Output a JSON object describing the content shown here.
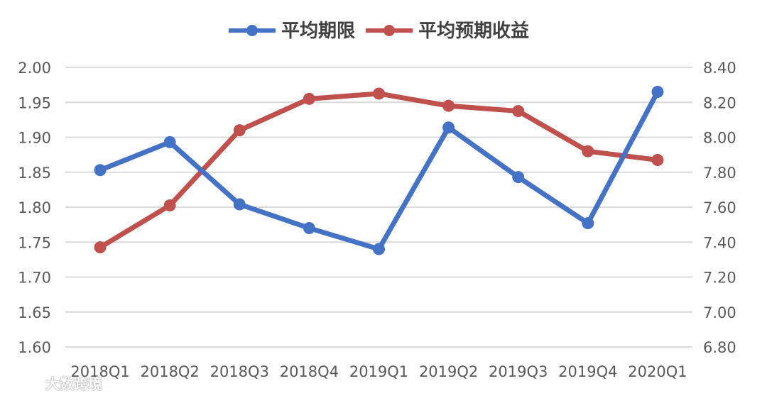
{
  "chart_data": {
    "type": "line",
    "categories": [
      "2018Q1",
      "2018Q2",
      "2018Q3",
      "2018Q4",
      "2019Q1",
      "2019Q2",
      "2019Q3",
      "2019Q4",
      "2020Q1"
    ],
    "series": [
      {
        "name": "平均期限",
        "axis": "left",
        "color": "#4472C4",
        "values": [
          1.853,
          1.893,
          1.804,
          1.77,
          1.74,
          1.914,
          1.843,
          1.777,
          1.965
        ]
      },
      {
        "name": "平均预期收益",
        "axis": "right",
        "color": "#C0504D",
        "values": [
          7.37,
          7.61,
          8.04,
          8.22,
          8.25,
          8.18,
          8.15,
          7.92,
          7.87
        ]
      }
    ],
    "y_left": {
      "ylim": [
        1.6,
        2.0
      ],
      "ticks": [
        "2.00",
        "1.95",
        "1.90",
        "1.85",
        "1.80",
        "1.75",
        "1.70",
        "1.65",
        "1.60"
      ]
    },
    "y_right": {
      "ylim": [
        6.8,
        8.4
      ],
      "ticks": [
        "8.40",
        "8.20",
        "8.00",
        "7.80",
        "7.60",
        "7.40",
        "7.20",
        "7.00",
        "6.80"
      ]
    },
    "grid": true,
    "legend_position": "top-center"
  },
  "watermark": {
    "text": "大数跨境",
    "icon": "logo-icon"
  }
}
